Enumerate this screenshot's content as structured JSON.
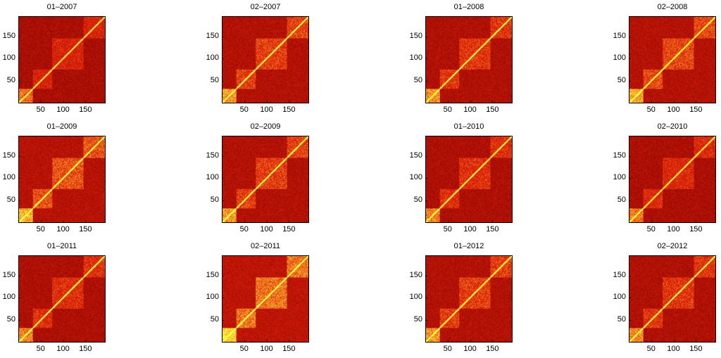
{
  "chart_data": [
    {
      "type": "heatmap",
      "title": "01–2007",
      "xticks": [
        "50",
        "100",
        "150"
      ],
      "yticks": [
        "50",
        "100",
        "150"
      ],
      "size": 195,
      "blocks": [
        [
          0,
          30
        ],
        [
          30,
          75
        ],
        [
          75,
          145
        ],
        [
          145,
          195
        ]
      ],
      "intensity": 0.25
    },
    {
      "type": "heatmap",
      "title": "02–2007",
      "xticks": [
        "50",
        "100",
        "150"
      ],
      "yticks": [
        "50",
        "100",
        "150"
      ],
      "size": 195,
      "blocks": [
        [
          0,
          30
        ],
        [
          30,
          75
        ],
        [
          75,
          145
        ],
        [
          145,
          195
        ]
      ],
      "intensity": 0.45
    },
    {
      "type": "heatmap",
      "title": "01–2008",
      "xticks": [
        "50",
        "100",
        "150"
      ],
      "yticks": [
        "50",
        "100",
        "150"
      ],
      "size": 195,
      "blocks": [
        [
          0,
          30
        ],
        [
          30,
          75
        ],
        [
          75,
          145
        ],
        [
          145,
          195
        ]
      ],
      "intensity": 0.4
    },
    {
      "type": "heatmap",
      "title": "02–2008",
      "xticks": [
        "50",
        "100",
        "150"
      ],
      "yticks": [
        "50",
        "100",
        "150"
      ],
      "size": 195,
      "blocks": [
        [
          0,
          30
        ],
        [
          30,
          75
        ],
        [
          75,
          145
        ],
        [
          145,
          195
        ]
      ],
      "intensity": 0.5
    },
    {
      "type": "heatmap",
      "title": "01–2009",
      "xticks": [
        "50",
        "100",
        "150"
      ],
      "yticks": [
        "50",
        "100",
        "150"
      ],
      "size": 195,
      "blocks": [
        [
          0,
          30
        ],
        [
          30,
          75
        ],
        [
          75,
          145
        ],
        [
          145,
          195
        ]
      ],
      "intensity": 0.55
    },
    {
      "type": "heatmap",
      "title": "02–2009",
      "xticks": [
        "50",
        "100",
        "150"
      ],
      "yticks": [
        "50",
        "100",
        "150"
      ],
      "size": 195,
      "blocks": [
        [
          0,
          30
        ],
        [
          30,
          75
        ],
        [
          75,
          145
        ],
        [
          145,
          195
        ]
      ],
      "intensity": 0.45
    },
    {
      "type": "heatmap",
      "title": "01–2010",
      "xticks": [
        "50",
        "100",
        "150"
      ],
      "yticks": [
        "50",
        "100",
        "150"
      ],
      "size": 195,
      "blocks": [
        [
          0,
          30
        ],
        [
          30,
          75
        ],
        [
          75,
          145
        ],
        [
          145,
          195
        ]
      ],
      "intensity": 0.35
    },
    {
      "type": "heatmap",
      "title": "02–2010",
      "xticks": [
        "50",
        "100",
        "150"
      ],
      "yticks": [
        "50",
        "100",
        "150"
      ],
      "size": 195,
      "blocks": [
        [
          0,
          30
        ],
        [
          30,
          75
        ],
        [
          75,
          145
        ],
        [
          145,
          195
        ]
      ],
      "intensity": 0.3
    },
    {
      "type": "heatmap",
      "title": "01–2011",
      "xticks": [
        "50",
        "100",
        "150"
      ],
      "yticks": [
        "50",
        "100",
        "150"
      ],
      "size": 195,
      "blocks": [
        [
          0,
          30
        ],
        [
          30,
          75
        ],
        [
          75,
          145
        ],
        [
          145,
          195
        ]
      ],
      "intensity": 0.35
    },
    {
      "type": "heatmap",
      "title": "02–2011",
      "xticks": [
        "50",
        "100",
        "150"
      ],
      "yticks": [
        "50",
        "100",
        "150"
      ],
      "size": 195,
      "blocks": [
        [
          0,
          30
        ],
        [
          30,
          75
        ],
        [
          75,
          145
        ],
        [
          145,
          195
        ]
      ],
      "intensity": 0.7
    },
    {
      "type": "heatmap",
      "title": "01–2012",
      "xticks": [
        "50",
        "100",
        "150"
      ],
      "yticks": [
        "50",
        "100",
        "150"
      ],
      "size": 195,
      "blocks": [
        [
          0,
          30
        ],
        [
          30,
          75
        ],
        [
          75,
          145
        ],
        [
          145,
          195
        ]
      ],
      "intensity": 0.45
    },
    {
      "type": "heatmap",
      "title": "02–2012",
      "xticks": [
        "50",
        "100",
        "150"
      ],
      "yticks": [
        "50",
        "100",
        "150"
      ],
      "size": 195,
      "blocks": [
        [
          0,
          30
        ],
        [
          30,
          75
        ],
        [
          75,
          145
        ],
        [
          145,
          195
        ]
      ],
      "intensity": 0.4
    }
  ],
  "colormap": {
    "low": "#7a0000",
    "mid": "#e0200a",
    "high": "#ffff40"
  }
}
